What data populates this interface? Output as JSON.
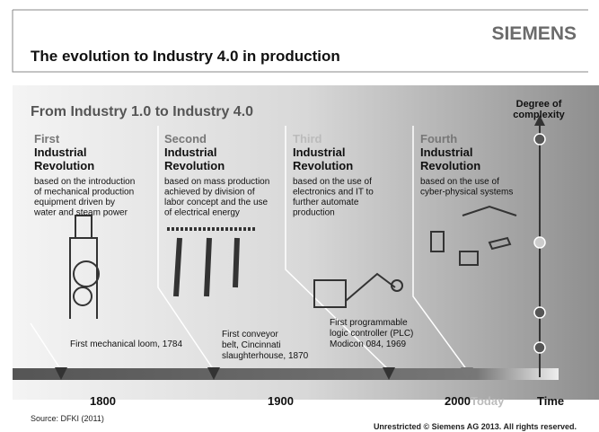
{
  "header": {
    "brand": "SIEMENS",
    "title": "The evolution to Industry 4.0 in production"
  },
  "subtitle": "From Industry 1.0 to Industry 4.0",
  "complexity_label": [
    "Degree of",
    "complexity"
  ],
  "revolutions": [
    {
      "ordinal": "First",
      "label": [
        "Industrial",
        "Revolution"
      ],
      "description": [
        "based on the introduction",
        "of  mechanical production",
        "equipment driven by",
        "water and steam power"
      ]
    },
    {
      "ordinal": "Second",
      "label": [
        "Industrial",
        "Revolution"
      ],
      "description": [
        "based on mass production",
        "achieved by division of",
        "labor concept and the use",
        "of electrical energy"
      ]
    },
    {
      "ordinal": "Third",
      "label": [
        "Industrial",
        "Revolution"
      ],
      "description": [
        "based on the use of",
        "electronics and IT to",
        "further automate",
        "production"
      ]
    },
    {
      "ordinal": "Fourth",
      "label": [
        "Industrial",
        "Revolution"
      ],
      "description": [
        "based on the use of",
        "cyber-physical systems"
      ]
    }
  ],
  "milestones": [
    {
      "text": [
        "First mechanical loom, 1784"
      ]
    },
    {
      "text": [
        "First conveyor",
        "belt, Cincinnati",
        "slaughterhouse, 1870"
      ]
    },
    {
      "text": [
        "First programmable",
        "logic controller (PLC)",
        "Modicon 084, 1969"
      ]
    }
  ],
  "time_axis": {
    "labels": [
      "1800",
      "1900",
      "2000"
    ],
    "today": "Today",
    "axis_label": "Time"
  },
  "source": "Source: DFKI (2011)",
  "footer": "Unrestricted © Siemens AG 2013. All rights reserved."
}
